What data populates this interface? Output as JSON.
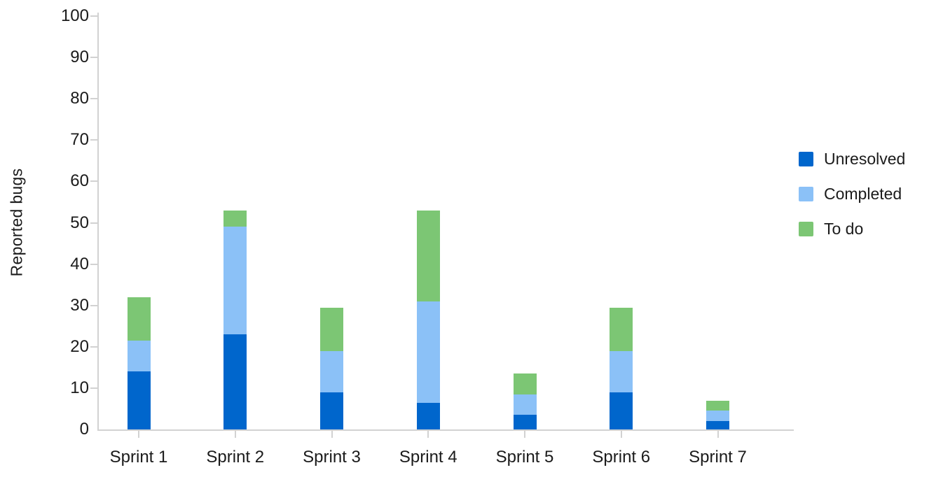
{
  "chart_data": {
    "type": "bar",
    "stacked": true,
    "title": "",
    "ylabel": "Reported bugs",
    "xlabel": "",
    "categories": [
      "Sprint 1",
      "Sprint 2",
      "Sprint 3",
      "Sprint 4",
      "Sprint 5",
      "Sprint 6",
      "Sprint 7"
    ],
    "series": [
      {
        "name": "Unresolved",
        "color": "#0066CC",
        "values": [
          14,
          23,
          9,
          6.5,
          3.5,
          9,
          2
        ]
      },
      {
        "name": "Completed",
        "color": "#8BC1F7",
        "values": [
          7.5,
          26,
          10,
          24.5,
          5,
          10,
          2.5
        ]
      },
      {
        "name": "To do",
        "color": "#7CC674",
        "values": [
          10.5,
          4,
          10.5,
          22,
          5,
          10.5,
          2.5
        ]
      }
    ],
    "totals": [
      32,
      53,
      29.5,
      53,
      13.5,
      29.5,
      7
    ],
    "ylim": [
      0,
      100
    ],
    "yticks": [
      0,
      10,
      20,
      30,
      40,
      50,
      60,
      70,
      80,
      90,
      100
    ],
    "grid": false,
    "legend_position": "right",
    "legend": [
      "Unresolved",
      "Completed",
      "To do"
    ]
  }
}
